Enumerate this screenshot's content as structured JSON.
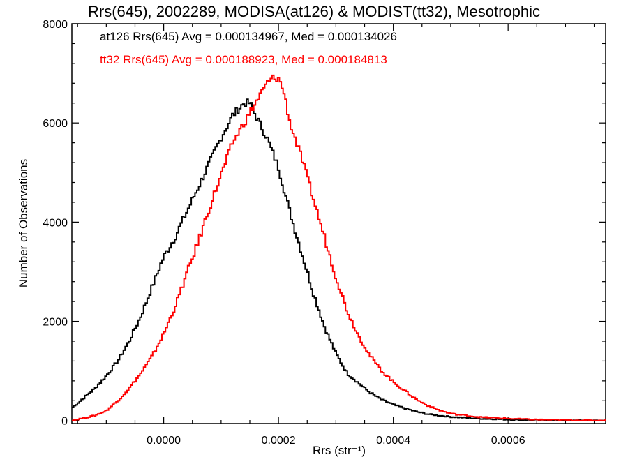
{
  "chart_data": {
    "type": "line",
    "title": "Rrs(645), 2002289, MODISA(at126) & MODIST(tt32), Mesotrophic",
    "xlabel": "Rrs (str⁻¹)",
    "ylabel": "Number of Observations",
    "xlim": [
      -0.00016,
      0.00077
    ],
    "ylim": [
      -60,
      8000
    ],
    "x_ticks": [
      0.0,
      0.0002,
      0.0004,
      0.0006
    ],
    "x_tick_labels": [
      "0.0000",
      "0.0002",
      "0.0004",
      "0.0006"
    ],
    "y_ticks": [
      0,
      2000,
      4000,
      6000,
      8000
    ],
    "y_tick_labels": [
      "0",
      "2000",
      "4000",
      "6000",
      "8000"
    ],
    "grid": false,
    "annotations": [
      "at126 Rrs(645) Avg = 0.000134967, Med = 0.000134026",
      "tt32 Rrs(645) Avg = 0.000188923, Med = 0.000184813"
    ],
    "series": [
      {
        "color": "#000000",
        "x": [
          -0.00016,
          -0.00014,
          -0.00012,
          -0.0001,
          -8e-05,
          -6e-05,
          -4e-05,
          -2e-05,
          0.0,
          2e-05,
          4e-05,
          6e-05,
          8e-05,
          0.0001,
          0.00012,
          0.00014,
          0.00015,
          0.00016,
          0.00018,
          0.0002,
          0.00022,
          0.00024,
          0.00026,
          0.00028,
          0.0003,
          0.00032,
          0.00034,
          0.00036,
          0.00038,
          0.0004,
          0.00042,
          0.00044,
          0.00046,
          0.0005,
          0.00055,
          0.0006,
          0.00065,
          0.0007,
          0.00077
        ],
        "y": [
          250,
          450,
          650,
          900,
          1200,
          1600,
          2100,
          2700,
          3300,
          3700,
          4200,
          4700,
          5200,
          5700,
          6150,
          6400,
          6400,
          6150,
          5700,
          5100,
          4200,
          3400,
          2600,
          1900,
          1350,
          950,
          750,
          560,
          420,
          320,
          250,
          180,
          130,
          75,
          40,
          20,
          10,
          5,
          0
        ]
      },
      {
        "color": "#ff0000",
        "x": [
          -0.00016,
          -0.00014,
          -0.00012,
          -0.0001,
          -8e-05,
          -6e-05,
          -4e-05,
          -2e-05,
          0.0,
          2e-05,
          4e-05,
          6e-05,
          8e-05,
          0.0001,
          0.00012,
          0.00014,
          0.00016,
          0.00018,
          0.00019,
          0.0002,
          0.00021,
          0.00022,
          0.00024,
          0.00026,
          0.00028,
          0.0003,
          0.00032,
          0.00034,
          0.00036,
          0.00038,
          0.0004,
          0.00042,
          0.00044,
          0.00046,
          0.00048,
          0.0005,
          0.00055,
          0.0006,
          0.00065,
          0.0007,
          0.00077
        ],
        "y": [
          0,
          50,
          100,
          200,
          400,
          650,
          950,
          1300,
          1750,
          2300,
          2950,
          3600,
          4300,
          4950,
          5600,
          6000,
          6400,
          6800,
          6900,
          6900,
          6600,
          6000,
          5300,
          4500,
          3700,
          2900,
          2200,
          1700,
          1300,
          1000,
          780,
          600,
          430,
          300,
          210,
          140,
          70,
          40,
          20,
          10,
          0
        ]
      }
    ]
  }
}
